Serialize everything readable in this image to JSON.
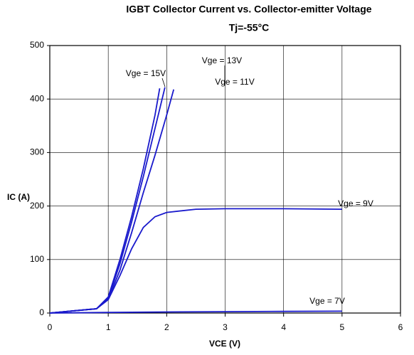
{
  "chart_data": {
    "type": "line",
    "title": "IGBT Collector Current vs. Collector-emitter Voltage",
    "subtitle": "Tj=-55°C",
    "x_label": "VCE (V)",
    "y_label": "IC (A)",
    "xlim": [
      0,
      6
    ],
    "ylim": [
      0,
      500
    ],
    "xticks": [
      0,
      1,
      2,
      3,
      4,
      5,
      6
    ],
    "yticks": [
      0,
      100,
      200,
      300,
      400,
      500
    ],
    "grid": true,
    "series": [
      {
        "name": "Vge = 15V",
        "color": "#1a1acc",
        "x": [
          0,
          0.8,
          1.0,
          1.2,
          1.4,
          1.6,
          1.8,
          1.88
        ],
        "values": [
          0,
          8,
          30,
          100,
          180,
          270,
          370,
          420
        ]
      },
      {
        "name": "Vge = 13V",
        "color": "#1a1acc",
        "x": [
          0,
          0.8,
          1.0,
          1.2,
          1.4,
          1.6,
          1.8,
          1.97
        ],
        "values": [
          0,
          8,
          28,
          92,
          170,
          255,
          345,
          422
        ]
      },
      {
        "name": "Vge = 11V",
        "color": "#1a1acc",
        "x": [
          0,
          0.8,
          1.0,
          1.2,
          1.4,
          1.6,
          1.8,
          2.0,
          2.12
        ],
        "values": [
          0,
          8,
          26,
          80,
          150,
          225,
          295,
          370,
          418
        ]
      },
      {
        "name": "Vge = 9V",
        "color": "#1a1acc",
        "x": [
          0,
          0.8,
          1.0,
          1.2,
          1.4,
          1.6,
          1.8,
          2.0,
          2.5,
          3,
          4,
          5
        ],
        "values": [
          0,
          8,
          25,
          70,
          120,
          160,
          180,
          188,
          194,
          195,
          195,
          194
        ]
      },
      {
        "name": "Vge = 7V",
        "color": "#1a1acc",
        "x": [
          0,
          1,
          2,
          3,
          4,
          5
        ],
        "values": [
          0,
          1,
          2,
          2.5,
          3,
          3.5
        ]
      }
    ]
  }
}
